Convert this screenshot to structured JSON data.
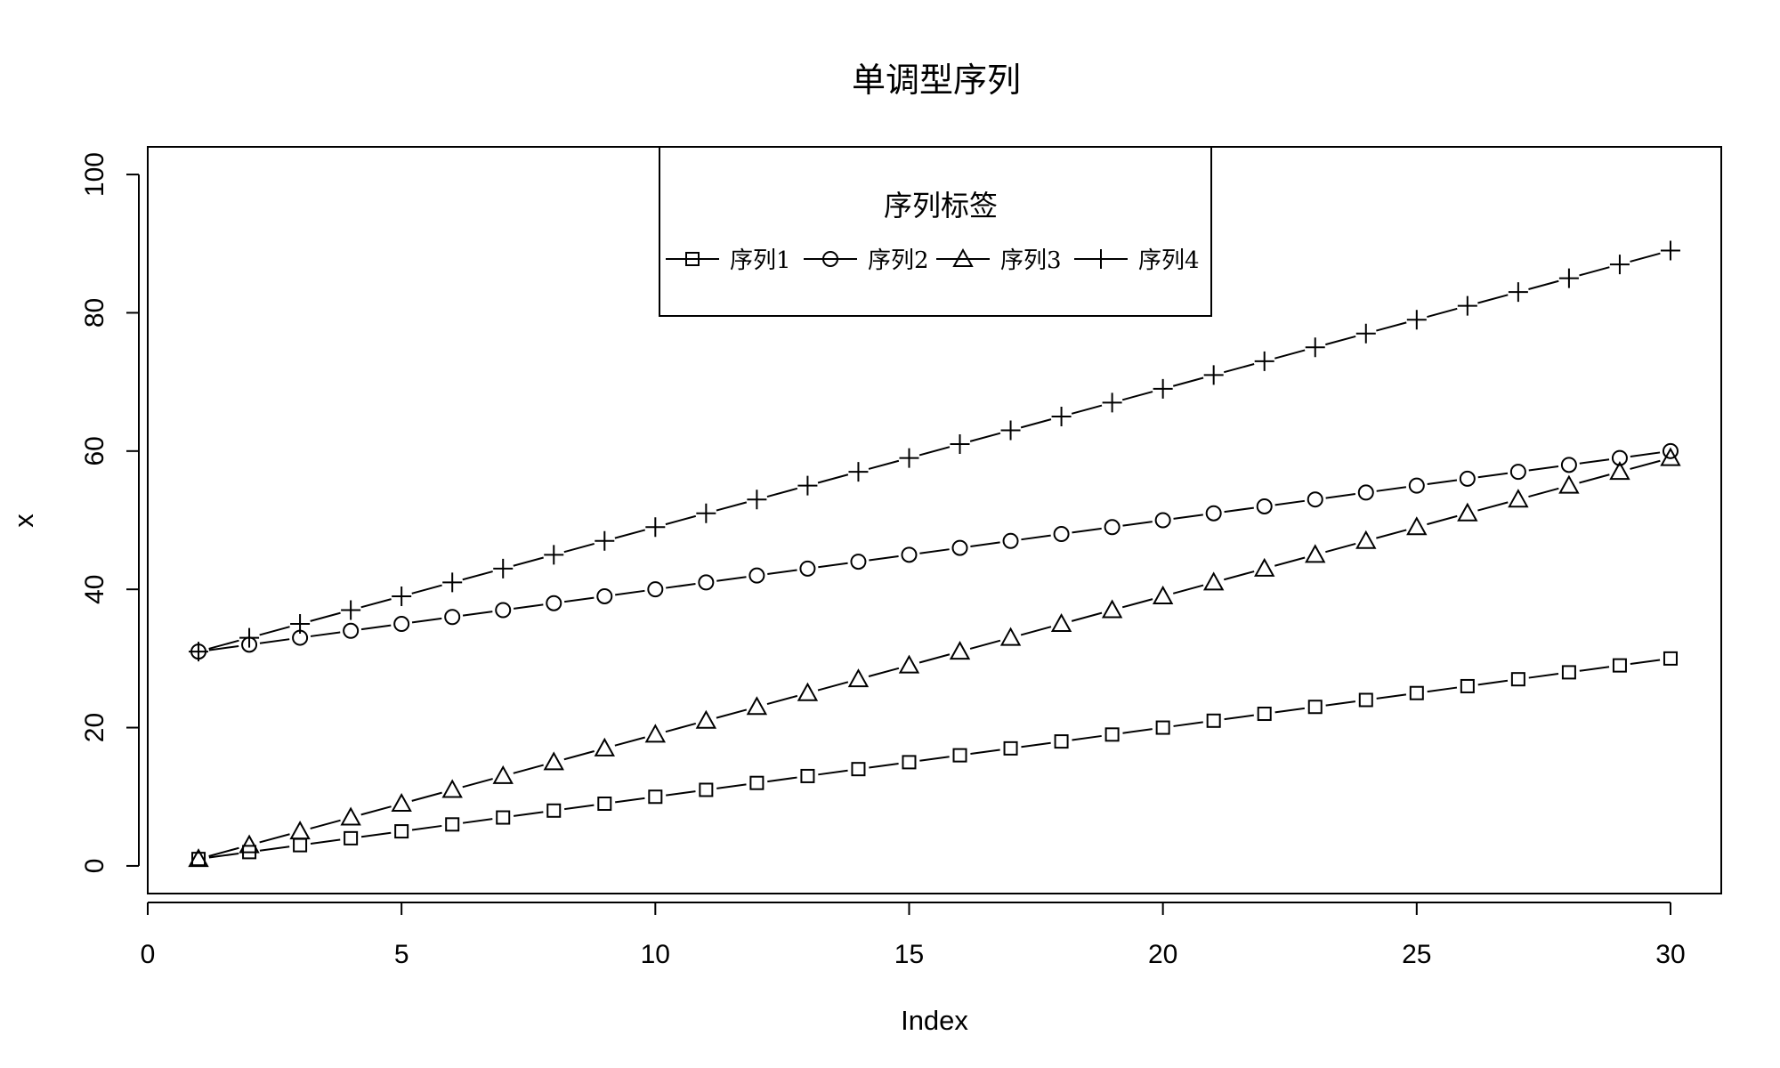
{
  "chart_data": {
    "type": "line",
    "title": "单调型序列",
    "xlabel": "Index",
    "ylabel": "x",
    "xlim": [
      0,
      31
    ],
    "ylim": [
      -4,
      104
    ],
    "x_ticks": [
      0,
      5,
      10,
      15,
      20,
      25,
      30
    ],
    "y_ticks": [
      0,
      20,
      40,
      60,
      80,
      100
    ],
    "grid": false,
    "legend": {
      "title": "序列标签",
      "placement": "top-center",
      "orientation": "horizontal"
    },
    "x": [
      1,
      2,
      3,
      4,
      5,
      6,
      7,
      8,
      9,
      10,
      11,
      12,
      13,
      14,
      15,
      16,
      17,
      18,
      19,
      20,
      21,
      22,
      23,
      24,
      25,
      26,
      27,
      28,
      29,
      30
    ],
    "series": [
      {
        "name": "序列1",
        "marker": "square",
        "values": [
          1,
          2,
          3,
          4,
          5,
          6,
          7,
          8,
          9,
          10,
          11,
          12,
          13,
          14,
          15,
          16,
          17,
          18,
          19,
          20,
          21,
          22,
          23,
          24,
          25,
          26,
          27,
          28,
          29,
          30
        ]
      },
      {
        "name": "序列2",
        "marker": "circle",
        "values": [
          31,
          32,
          33,
          34,
          35,
          36,
          37,
          38,
          39,
          40,
          41,
          42,
          43,
          44,
          45,
          46,
          47,
          48,
          49,
          50,
          51,
          52,
          53,
          54,
          55,
          56,
          57,
          58,
          59,
          60
        ]
      },
      {
        "name": "序列3",
        "marker": "triangle",
        "values": [
          1,
          3,
          5,
          7,
          9,
          11,
          13,
          15,
          17,
          19,
          21,
          23,
          25,
          27,
          29,
          31,
          33,
          35,
          37,
          39,
          41,
          43,
          45,
          47,
          49,
          51,
          53,
          55,
          57,
          59
        ]
      },
      {
        "name": "序列4",
        "marker": "plus",
        "values": [
          31,
          33,
          35,
          37,
          39,
          41,
          43,
          45,
          47,
          49,
          51,
          53,
          55,
          57,
          59,
          61,
          63,
          65,
          67,
          69,
          71,
          73,
          75,
          77,
          79,
          81,
          83,
          85,
          87,
          89
        ]
      }
    ],
    "colors": {
      "line": "#000000",
      "background": "#ffffff"
    }
  }
}
